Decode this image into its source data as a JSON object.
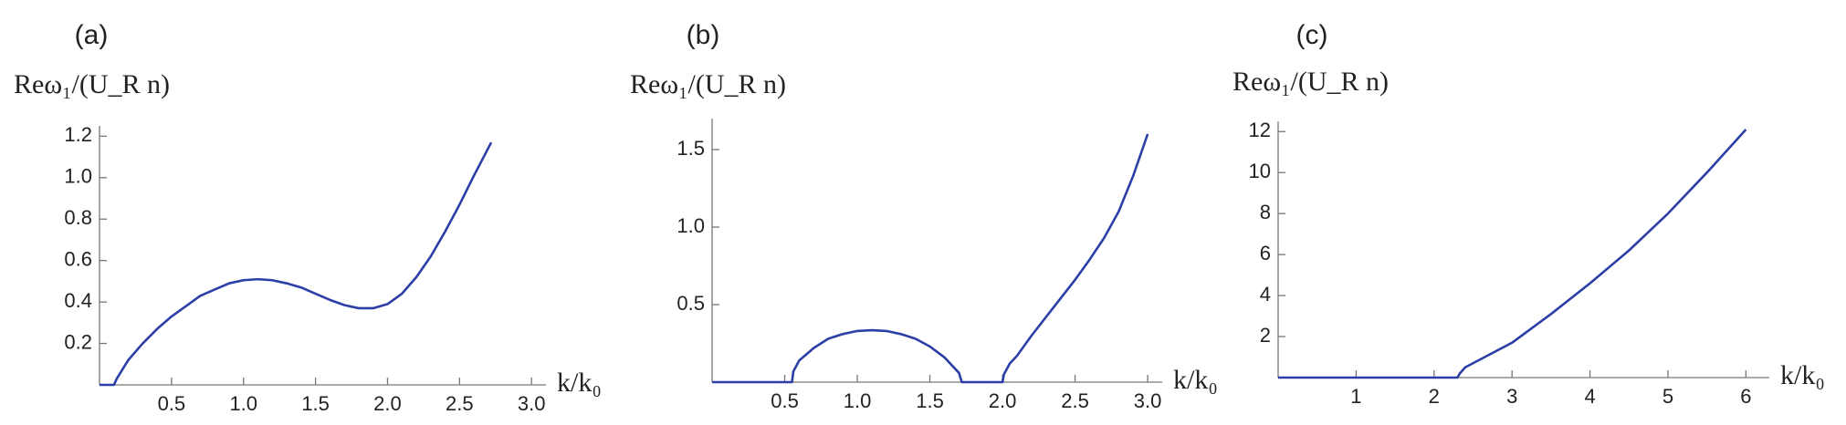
{
  "chart_data": [
    {
      "type": "line",
      "label": "(a)",
      "ylabel": "Reω₁/(U_R n)",
      "xlabel": "k/k₀",
      "color": "#2b3fa6",
      "x": [
        0,
        0.1,
        0.12,
        0.2,
        0.3,
        0.4,
        0.5,
        0.6,
        0.7,
        0.8,
        0.9,
        1.0,
        1.1,
        1.2,
        1.3,
        1.4,
        1.5,
        1.6,
        1.7,
        1.8,
        1.9,
        2.0,
        2.1,
        2.2,
        2.3,
        2.4,
        2.5,
        2.6,
        2.72
      ],
      "values": [
        0,
        0,
        0.03,
        0.12,
        0.2,
        0.27,
        0.33,
        0.38,
        0.43,
        0.46,
        0.49,
        0.505,
        0.51,
        0.505,
        0.49,
        0.47,
        0.44,
        0.41,
        0.385,
        0.37,
        0.37,
        0.39,
        0.44,
        0.52,
        0.62,
        0.74,
        0.87,
        1.01,
        1.17
      ],
      "xlim": [
        0,
        3.1
      ],
      "ylim": [
        0,
        1.25
      ],
      "xticks": [
        0.5,
        {
          "value": 1,
          "label": "1.0"
        },
        1.5,
        {
          "value": 2,
          "label": "2.0"
        },
        2.5,
        {
          "value": 3,
          "label": "3.0"
        }
      ],
      "yticks": [
        0.2,
        0.4,
        0.6,
        0.8,
        {
          "value": 1,
          "label": "1.0"
        },
        1.2
      ]
    },
    {
      "type": "line",
      "label": "(b)",
      "ylabel": "Reω₁/(U_R n)",
      "xlabel": "k/k₀",
      "color": "#2b3fa6",
      "x": [
        0,
        0.55,
        0.56,
        0.6,
        0.7,
        0.8,
        0.9,
        1.0,
        1.1,
        1.2,
        1.3,
        1.4,
        1.5,
        1.6,
        1.7,
        1.72,
        2.0,
        2.01,
        2.05,
        2.1,
        2.2,
        2.3,
        2.4,
        2.5,
        2.6,
        2.7,
        2.8,
        2.9,
        3.0
      ],
      "values": [
        0,
        0,
        0.07,
        0.14,
        0.22,
        0.28,
        0.31,
        0.33,
        0.335,
        0.33,
        0.31,
        0.28,
        0.23,
        0.16,
        0.06,
        0,
        0,
        0.05,
        0.12,
        0.17,
        0.3,
        0.42,
        0.54,
        0.66,
        0.79,
        0.93,
        1.1,
        1.33,
        1.6
      ],
      "xlim": [
        0,
        3.1
      ],
      "ylim": [
        0,
        1.7
      ],
      "xticks": [
        0.5,
        {
          "value": 1,
          "label": "1.0"
        },
        1.5,
        {
          "value": 2,
          "label": "2.0"
        },
        2.5,
        {
          "value": 3,
          "label": "3.0"
        }
      ],
      "yticks": [
        0.5,
        {
          "value": 1,
          "label": "1.0"
        },
        1.5
      ]
    },
    {
      "type": "line",
      "label": "(c)",
      "ylabel": "Reω₁/(U_R n)",
      "xlabel": "k/k₀",
      "color": "#2b3fa6",
      "x": [
        0,
        2.3,
        2.33,
        2.4,
        2.6,
        3,
        3.5,
        4,
        4.5,
        5,
        5.5,
        6
      ],
      "values": [
        0,
        0,
        0.2,
        0.5,
        0.9,
        1.7,
        3.1,
        4.6,
        6.2,
        8.0,
        10.0,
        12.1
      ],
      "xlim": [
        0,
        6.3
      ],
      "ylim": [
        0,
        12.5
      ],
      "xticks": [
        1,
        2,
        3,
        4,
        5,
        6
      ],
      "yticks": [
        2,
        4,
        6,
        8,
        10,
        12
      ]
    }
  ]
}
